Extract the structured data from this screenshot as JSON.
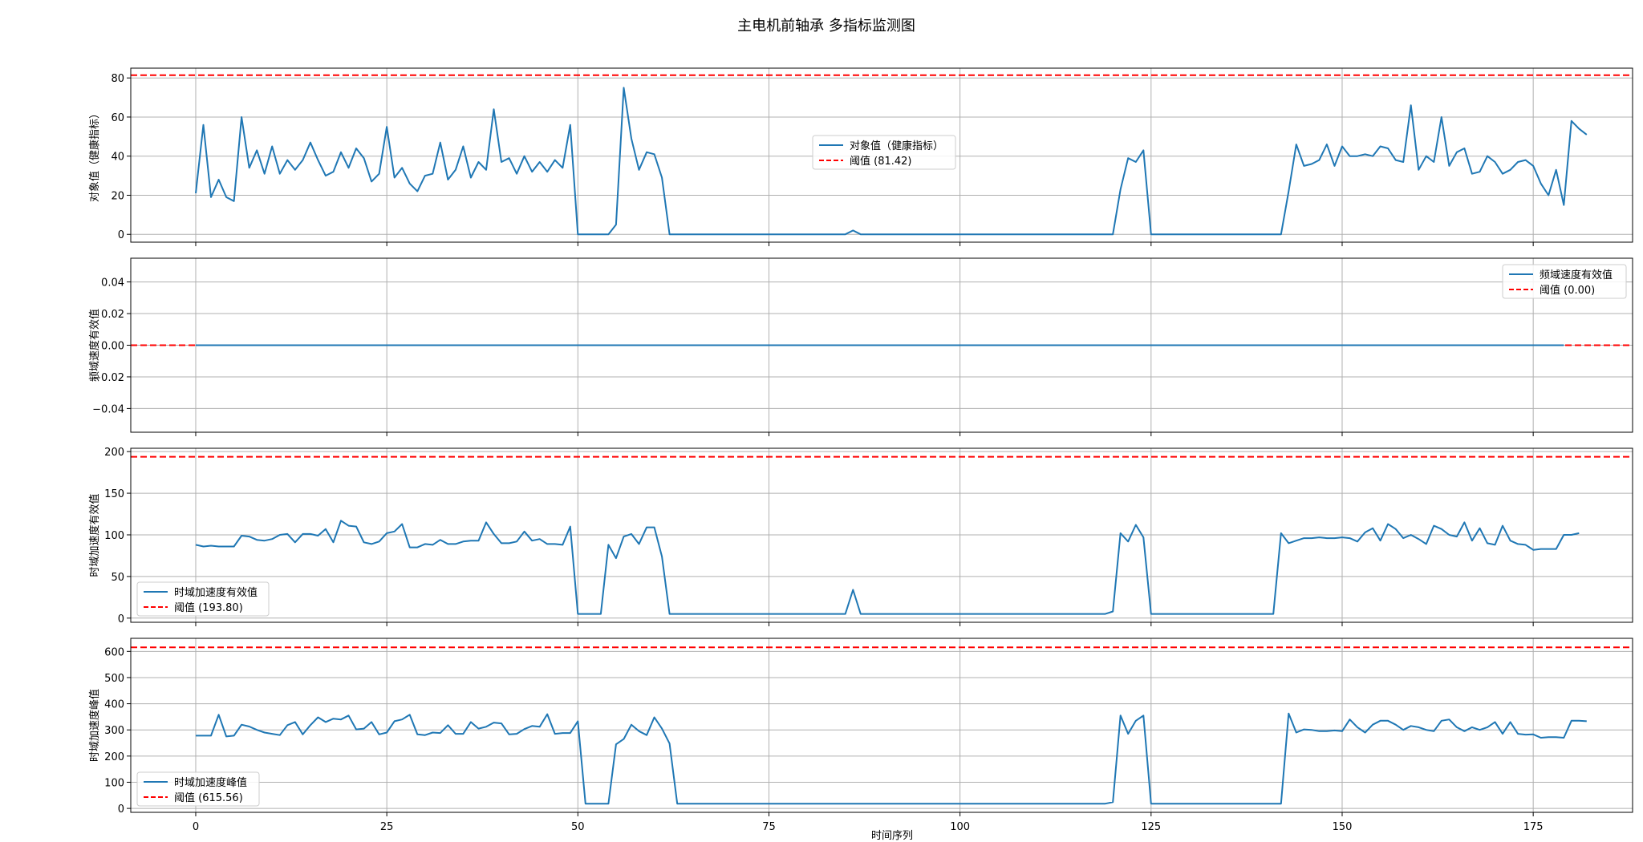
{
  "chart_data": {
    "title": "主电机前轴承 多指标监测图",
    "xlabel": "时间序列",
    "colors": {
      "series": "#1f77b4",
      "threshold": "#ff0000",
      "grid": "#b0b0b0"
    },
    "x_range": [
      -8.5,
      188
    ],
    "x_ticks": [
      0,
      25,
      50,
      75,
      100,
      125,
      150,
      175
    ],
    "x_tick_labels": [
      "0",
      "25",
      "50",
      "75",
      "100",
      "125",
      "150",
      "175"
    ],
    "grid": true,
    "panels": [
      {
        "type": "line",
        "ylabel": "对象值（健康指标）",
        "ylim": [
          -4,
          85
        ],
        "y_ticks": [
          0,
          20,
          40,
          60,
          80
        ],
        "y_tick_labels": [
          "0",
          "20",
          "40",
          "60",
          "80"
        ],
        "series_name": "对象值（健康指标）",
        "threshold_value": 81.42,
        "threshold_label": "阈值 (81.42)",
        "legend_position": "center",
        "values": [
          21,
          56,
          19,
          28,
          19,
          17,
          60,
          34,
          43,
          31,
          45,
          31,
          38,
          33,
          38,
          47,
          38,
          30,
          32,
          42,
          34,
          44,
          39,
          27,
          31,
          55,
          29,
          34,
          26,
          22,
          30,
          31,
          47,
          28,
          33,
          45,
          29,
          37,
          33,
          64,
          37,
          39,
          31,
          40,
          32,
          37,
          32,
          38,
          34,
          56,
          0,
          0,
          0,
          0,
          0,
          5,
          75,
          49,
          33,
          42,
          41,
          29,
          0,
          0,
          0,
          0,
          0,
          0,
          0,
          0,
          0,
          0,
          0,
          0,
          0,
          0,
          0,
          0,
          0,
          0,
          0,
          0,
          0,
          0,
          0,
          0,
          2,
          0,
          0,
          0,
          0,
          0,
          0,
          0,
          0,
          0,
          0,
          0,
          0,
          0,
          0,
          0,
          0,
          0,
          0,
          0,
          0,
          0,
          0,
          0,
          0,
          0,
          0,
          0,
          0,
          0,
          0,
          0,
          0,
          0,
          0,
          23,
          39,
          37,
          43,
          0,
          0,
          0,
          0,
          0,
          0,
          0,
          0,
          0,
          0,
          0,
          0,
          0,
          0,
          0,
          0,
          0,
          0,
          22,
          46,
          35,
          36,
          38,
          46,
          35,
          45,
          40,
          40,
          41,
          40,
          45,
          44,
          38,
          37,
          66,
          33,
          40,
          37,
          60,
          35,
          42,
          44,
          31,
          32,
          40,
          37,
          31,
          33,
          37,
          38,
          35,
          26,
          20,
          33,
          15,
          58,
          54,
          51
        ]
      },
      {
        "type": "line",
        "ylabel": "频域速度有效值",
        "ylim": [
          -0.055,
          0.055
        ],
        "y_ticks": [
          -0.04,
          -0.02,
          0.0,
          0.02,
          0.04
        ],
        "y_tick_labels": [
          "−0.04",
          "−0.02",
          "0.00",
          "0.02",
          "0.04"
        ],
        "series_name": "频域速度有效值",
        "threshold_value": 0.0,
        "threshold_label": "阈值 (0.00)",
        "legend_position": "top-right",
        "values": [
          0,
          0,
          0,
          0,
          0,
          0,
          0,
          0,
          0,
          0,
          0,
          0,
          0,
          0,
          0,
          0,
          0,
          0,
          0,
          0,
          0,
          0,
          0,
          0,
          0,
          0,
          0,
          0,
          0,
          0,
          0,
          0,
          0,
          0,
          0,
          0,
          0,
          0,
          0,
          0,
          0,
          0,
          0,
          0,
          0,
          0,
          0,
          0,
          0,
          0,
          0,
          0,
          0,
          0,
          0,
          0,
          0,
          0,
          0,
          0,
          0,
          0,
          0,
          0,
          0,
          0,
          0,
          0,
          0,
          0,
          0,
          0,
          0,
          0,
          0,
          0,
          0,
          0,
          0,
          0,
          0,
          0,
          0,
          0,
          0,
          0,
          0,
          0,
          0,
          0,
          0,
          0,
          0,
          0,
          0,
          0,
          0,
          0,
          0,
          0,
          0,
          0,
          0,
          0,
          0,
          0,
          0,
          0,
          0,
          0,
          0,
          0,
          0,
          0,
          0,
          0,
          0,
          0,
          0,
          0,
          0,
          0,
          0,
          0,
          0,
          0,
          0,
          0,
          0,
          0,
          0,
          0,
          0,
          0,
          0,
          0,
          0,
          0,
          0,
          0,
          0,
          0,
          0,
          0,
          0,
          0,
          0,
          0,
          0,
          0,
          0,
          0,
          0,
          0,
          0,
          0,
          0,
          0,
          0,
          0,
          0,
          0,
          0,
          0,
          0,
          0,
          0,
          0,
          0,
          0,
          0,
          0,
          0,
          0,
          0,
          0,
          0,
          0,
          0,
          0
        ]
      },
      {
        "type": "line",
        "ylabel": "时域加速度有效值",
        "ylim": [
          -5,
          204
        ],
        "y_ticks": [
          0,
          50,
          100,
          150,
          200
        ],
        "y_tick_labels": [
          "0",
          "50",
          "100",
          "150",
          "200"
        ],
        "series_name": "时域加速度有效值",
        "threshold_value": 193.8,
        "threshold_label": "阈值 (193.80)",
        "legend_position": "bottom-left",
        "values": [
          88,
          86,
          87,
          86,
          86,
          86,
          99,
          98,
          94,
          93,
          95,
          100,
          101,
          91,
          101,
          101,
          99,
          107,
          91,
          117,
          111,
          110,
          91,
          89,
          92,
          102,
          104,
          113,
          85,
          85,
          89,
          88,
          94,
          89,
          89,
          92,
          93,
          93,
          115,
          101,
          90,
          90,
          92,
          104,
          93,
          95,
          89,
          89,
          88,
          110,
          5,
          5,
          5,
          5,
          88,
          72,
          98,
          101,
          89,
          109,
          109,
          74,
          5,
          5,
          5,
          5,
          5,
          5,
          5,
          5,
          5,
          5,
          5,
          5,
          5,
          5,
          5,
          5,
          5,
          5,
          5,
          5,
          5,
          5,
          5,
          5,
          34,
          5,
          5,
          5,
          5,
          5,
          5,
          5,
          5,
          5,
          5,
          5,
          5,
          5,
          5,
          5,
          5,
          5,
          5,
          5,
          5,
          5,
          5,
          5,
          5,
          5,
          5,
          5,
          5,
          5,
          5,
          5,
          5,
          5,
          8,
          102,
          92,
          112,
          97,
          5,
          5,
          5,
          5,
          5,
          5,
          5,
          5,
          5,
          5,
          5,
          5,
          5,
          5,
          5,
          5,
          5,
          102,
          90,
          93,
          96,
          96,
          97,
          96,
          96,
          97,
          96,
          92,
          103,
          108,
          93,
          113,
          107,
          96,
          100,
          95,
          89,
          111,
          107,
          100,
          98,
          115,
          93,
          108,
          90,
          88,
          111,
          93,
          89,
          88,
          82,
          83,
          83,
          83,
          100,
          100,
          102
        ]
      },
      {
        "type": "line",
        "ylabel": "时域加速度峰值",
        "ylim": [
          -15,
          650
        ],
        "y_ticks": [
          0,
          100,
          200,
          300,
          400,
          500,
          600
        ],
        "y_tick_labels": [
          "0",
          "100",
          "200",
          "300",
          "400",
          "500",
          "600"
        ],
        "series_name": "时域加速度峰值",
        "threshold_value": 615.56,
        "threshold_label": "阈值 (615.56)",
        "legend_position": "bottom-left",
        "values": [
          278,
          278,
          278,
          358,
          275,
          278,
          320,
          313,
          300,
          290,
          285,
          280,
          318,
          330,
          283,
          318,
          348,
          330,
          343,
          340,
          355,
          302,
          305,
          330,
          283,
          290,
          333,
          340,
          358,
          283,
          280,
          290,
          288,
          318,
          285,
          285,
          330,
          305,
          312,
          328,
          325,
          283,
          285,
          303,
          315,
          312,
          360,
          285,
          288,
          288,
          333,
          18,
          18,
          18,
          18,
          245,
          265,
          320,
          295,
          280,
          348,
          305,
          248,
          18,
          18,
          18,
          18,
          18,
          18,
          18,
          18,
          18,
          18,
          18,
          18,
          18,
          18,
          18,
          18,
          18,
          18,
          18,
          18,
          18,
          18,
          18,
          18,
          18,
          18,
          18,
          18,
          18,
          18,
          18,
          18,
          18,
          18,
          18,
          18,
          18,
          18,
          18,
          18,
          18,
          18,
          18,
          18,
          18,
          18,
          18,
          18,
          18,
          18,
          18,
          18,
          18,
          18,
          18,
          18,
          18,
          24,
          355,
          285,
          335,
          355,
          18,
          18,
          18,
          18,
          18,
          18,
          18,
          18,
          18,
          18,
          18,
          18,
          18,
          18,
          18,
          18,
          18,
          18,
          363,
          290,
          302,
          300,
          295,
          295,
          298,
          295,
          340,
          310,
          290,
          320,
          335,
          335,
          320,
          300,
          315,
          310,
          300,
          295,
          335,
          340,
          310,
          295,
          310,
          300,
          310,
          330,
          285,
          330,
          285,
          282,
          283,
          270,
          272,
          272,
          270,
          335,
          335,
          333
        ]
      }
    ]
  }
}
